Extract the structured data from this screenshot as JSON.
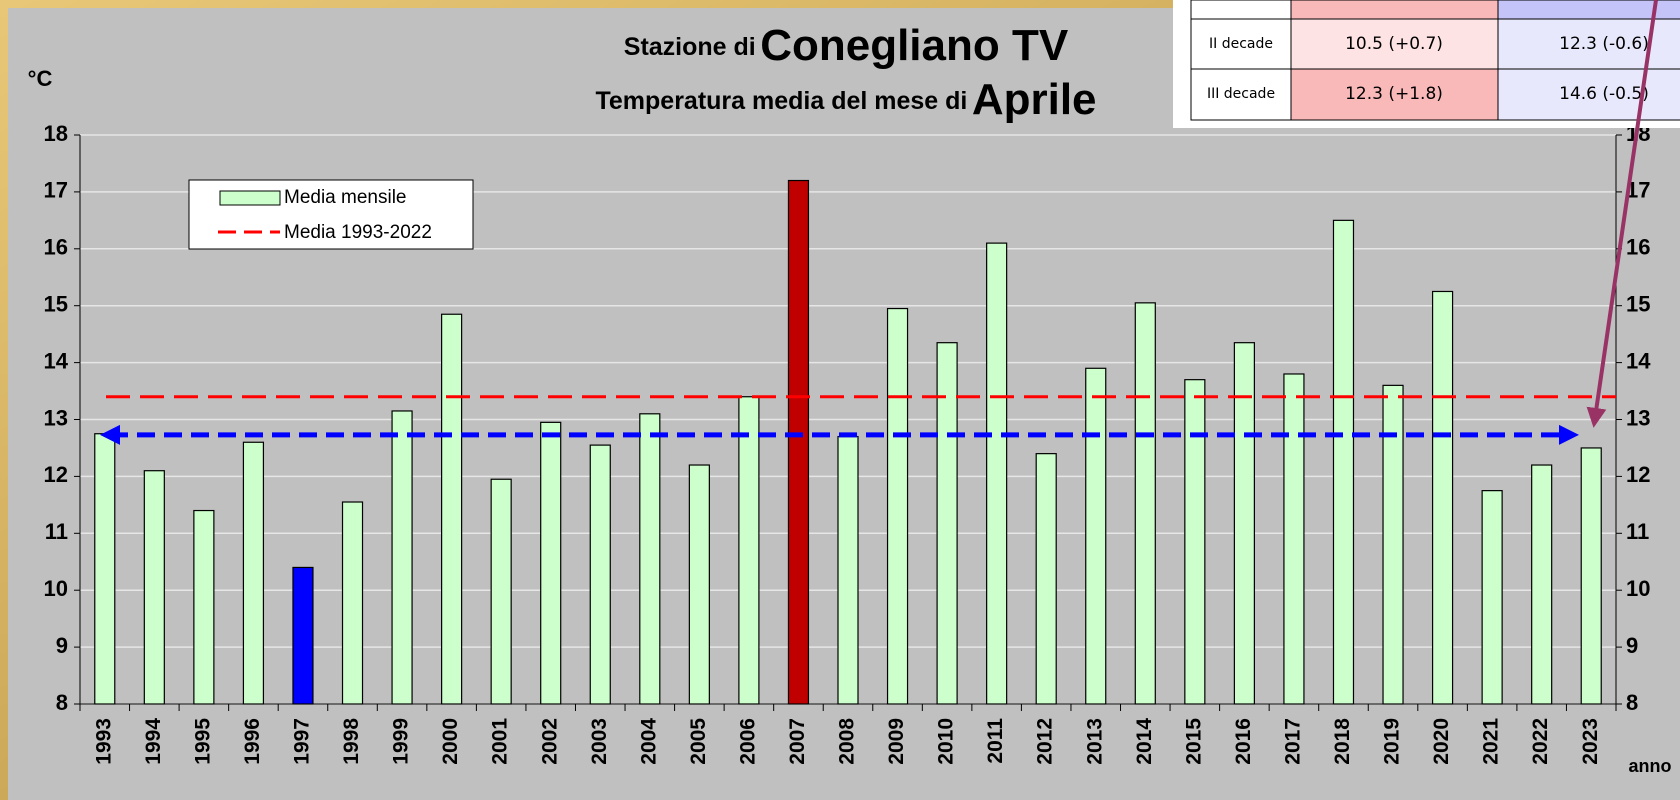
{
  "chart_data": {
    "type": "bar",
    "title_parts": [
      "Stazione di",
      "Conegliano TV"
    ],
    "subtitle_parts": [
      "Temperatura media del mese di",
      "Aprile"
    ],
    "y_label": "°C",
    "x_label": "anno",
    "categories": [
      "1993",
      "1994",
      "1995",
      "1996",
      "1997",
      "1998",
      "1999",
      "2000",
      "2001",
      "2002",
      "2003",
      "2004",
      "2005",
      "2006",
      "2007",
      "2008",
      "2009",
      "2010",
      "2011",
      "2012",
      "2013",
      "2014",
      "2015",
      "2016",
      "2017",
      "2018",
      "2019",
      "2020",
      "2021",
      "2022",
      "2023"
    ],
    "series": [
      {
        "name": "Media mensile",
        "color": "#ccffcc",
        "values": [
          12.75,
          12.1,
          11.4,
          12.6,
          10.4,
          11.55,
          13.15,
          14.85,
          11.95,
          12.95,
          12.55,
          13.1,
          12.2,
          13.4,
          17.2,
          12.7,
          14.95,
          14.35,
          16.1,
          12.4,
          13.9,
          15.05,
          13.7,
          14.35,
          13.8,
          16.5,
          13.6,
          15.25,
          11.75,
          12.2,
          12.5
        ],
        "colors": [
          "#ccffcc",
          "#ccffcc",
          "#ccffcc",
          "#ccffcc",
          "#0000ff",
          "#ccffcc",
          "#ccffcc",
          "#ccffcc",
          "#ccffcc",
          "#ccffcc",
          "#ccffcc",
          "#ccffcc",
          "#ccffcc",
          "#ccffcc",
          "#c00000",
          "#ccffcc",
          "#ccffcc",
          "#ccffcc",
          "#ccffcc",
          "#ccffcc",
          "#ccffcc",
          "#ccffcc",
          "#ccffcc",
          "#ccffcc",
          "#ccffcc",
          "#ccffcc",
          "#ccffcc",
          "#ccffcc",
          "#ccffcc",
          "#ccffcc",
          "#ccffcc"
        ]
      }
    ],
    "reference_lines": [
      {
        "name": "Media 1993-2022",
        "value": 13.4,
        "color": "#ff0000"
      },
      {
        "value": 12.73,
        "color": "#0000ff"
      }
    ],
    "ylim": [
      8,
      18
    ],
    "yticks": [
      8,
      9,
      10,
      11,
      12,
      13,
      14,
      15,
      16,
      17,
      18
    ],
    "grid": true,
    "legend": "upper left"
  },
  "table": {
    "rows": [
      [
        "II decade",
        "10.5 (+0.7)",
        "12.3 (-0.6)"
      ],
      [
        "III decade",
        "12.3 (+1.8)",
        "14.6 (-0.5)"
      ]
    ]
  }
}
